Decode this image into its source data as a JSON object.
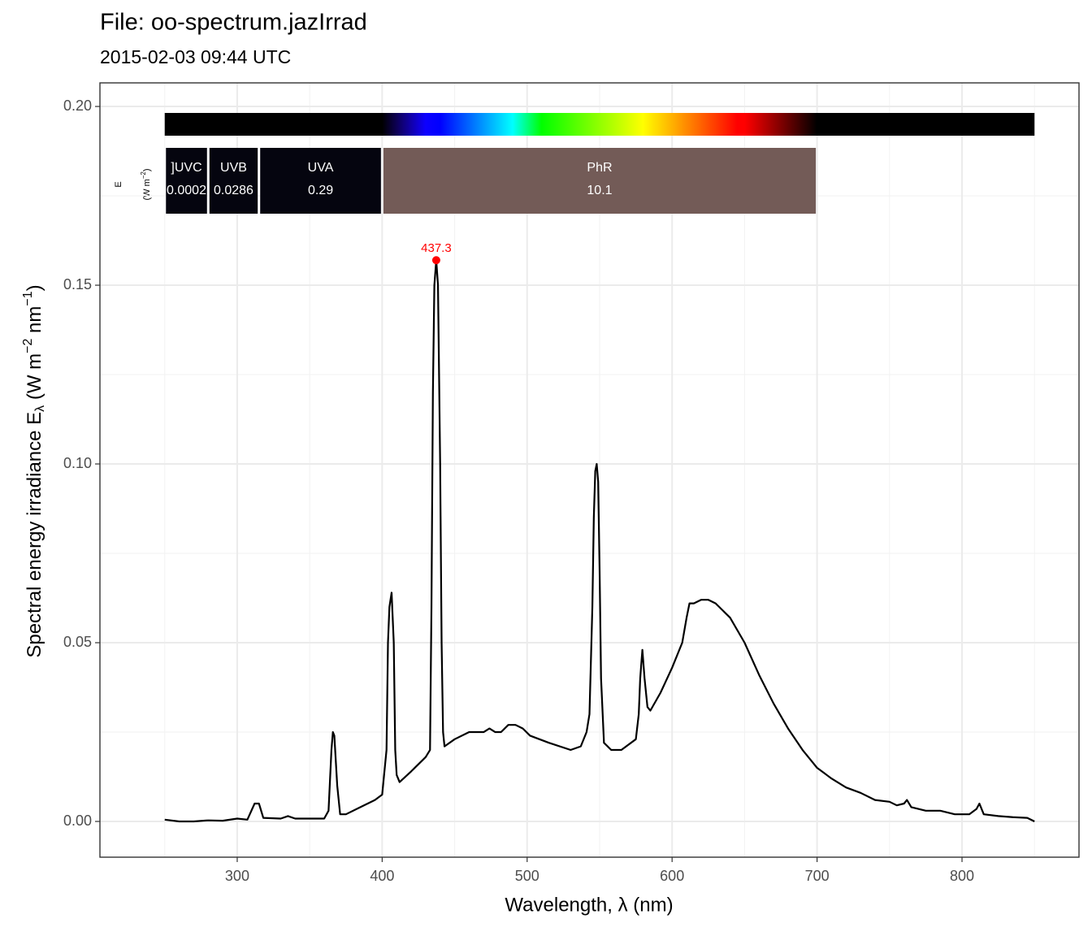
{
  "chart_data": {
    "type": "line",
    "title": "File: oo-spectrum.jazIrrad",
    "subtitle": "2015-02-03 09:44 UTC",
    "xlabel": "Wavelength, λ (nm)",
    "ylabel_parts": [
      "Spectral  energy  irradiance  E",
      "λ",
      "  (W m",
      "−2",
      " nm",
      "−1",
      ")"
    ],
    "xlim": [
      205.3,
      880.7
    ],
    "ylim": [
      -0.01,
      0.2066
    ],
    "xticks": [
      300,
      400,
      500,
      600,
      700,
      800
    ],
    "xminor": [
      250,
      350,
      450,
      550,
      650,
      750,
      850
    ],
    "yticks": [
      {
        "value": 0,
        "label": "0.00"
      },
      {
        "value": 0.05,
        "label": "0.05"
      },
      {
        "value": 0.1,
        "label": "0.10"
      },
      {
        "value": 0.15,
        "label": "0.15"
      },
      {
        "value": 0.2,
        "label": "0.20"
      }
    ],
    "yminor": [
      0.025,
      0.075,
      0.125,
      0.175
    ],
    "grid": true,
    "color": "#000000",
    "x": [
      250,
      260,
      270,
      280,
      290,
      300,
      307,
      312,
      315,
      318,
      330,
      335,
      340,
      350,
      360,
      363,
      365,
      366,
      367,
      369,
      371,
      375,
      385,
      395,
      400,
      403,
      404,
      405,
      406.5,
      408,
      409,
      410,
      412,
      420,
      430,
      433,
      434,
      435,
      436,
      437.3,
      438.5,
      440,
      441,
      442,
      443,
      450,
      460,
      470,
      474,
      478,
      482,
      487,
      492,
      497,
      502,
      515,
      530,
      537,
      541,
      543,
      545,
      546,
      547,
      548,
      549,
      550,
      551,
      553,
      558,
      565,
      575,
      577,
      578,
      579.5,
      581,
      583,
      585,
      592,
      600,
      607,
      610,
      612,
      615,
      620,
      625,
      630,
      640,
      650,
      660,
      670,
      680,
      690,
      696,
      700,
      710,
      720,
      730,
      740,
      750,
      755,
      760,
      762,
      765,
      775,
      785,
      795,
      805,
      810,
      812,
      815,
      825,
      835,
      845,
      850
    ],
    "values": [
      0.0005,
      0,
      0,
      0.0003,
      0.0002,
      0.0008,
      0.0005,
      0.005,
      0.005,
      0.001,
      0.0008,
      0.0015,
      0.0008,
      0.0008,
      0.0008,
      0.003,
      0.02,
      0.025,
      0.024,
      0.01,
      0.002,
      0.002,
      0.004,
      0.006,
      0.0075,
      0.02,
      0.05,
      0.06,
      0.064,
      0.05,
      0.02,
      0.013,
      0.011,
      0.014,
      0.018,
      0.02,
      0.06,
      0.12,
      0.15,
      0.157,
      0.15,
      0.1,
      0.05,
      0.025,
      0.021,
      0.023,
      0.025,
      0.025,
      0.026,
      0.025,
      0.025,
      0.027,
      0.027,
      0.026,
      0.024,
      0.022,
      0.02,
      0.021,
      0.025,
      0.03,
      0.06,
      0.085,
      0.098,
      0.1,
      0.095,
      0.07,
      0.04,
      0.022,
      0.02,
      0.02,
      0.023,
      0.03,
      0.04,
      0.048,
      0.04,
      0.032,
      0.031,
      0.036,
      0.043,
      0.05,
      0.057,
      0.061,
      0.061,
      0.062,
      0.062,
      0.061,
      0.057,
      0.05,
      0.041,
      0.033,
      0.026,
      0.02,
      0.017,
      0.015,
      0.012,
      0.0095,
      0.008,
      0.006,
      0.0055,
      0.0045,
      0.005,
      0.006,
      0.004,
      0.003,
      0.003,
      0.002,
      0.002,
      0.0035,
      0.005,
      0.002,
      0.0015,
      0.0012,
      0.001,
      0
    ],
    "peak": {
      "x": 437.3,
      "y": 0.157,
      "color": "#ff0000"
    },
    "color_bar": {
      "range": [
        250,
        850
      ]
    },
    "band_label_parts": [
      "E",
      "(W m",
      "−2",
      ")"
    ],
    "wavebands": [
      {
        "name": "]UVC",
        "range": [
          250,
          280
        ],
        "value_label": "0.0002",
        "color": "#05050f"
      },
      {
        "name": "UVB",
        "range": [
          280,
          315
        ],
        "value_label": "0.0286",
        "color": "#05050f"
      },
      {
        "name": "UVA",
        "range": [
          315,
          400
        ],
        "value_label": "0.29",
        "color": "#05050f"
      },
      {
        "name": "PhR",
        "range": [
          400,
          700
        ],
        "value_label": "10.1",
        "color": "#735b57"
      }
    ]
  }
}
